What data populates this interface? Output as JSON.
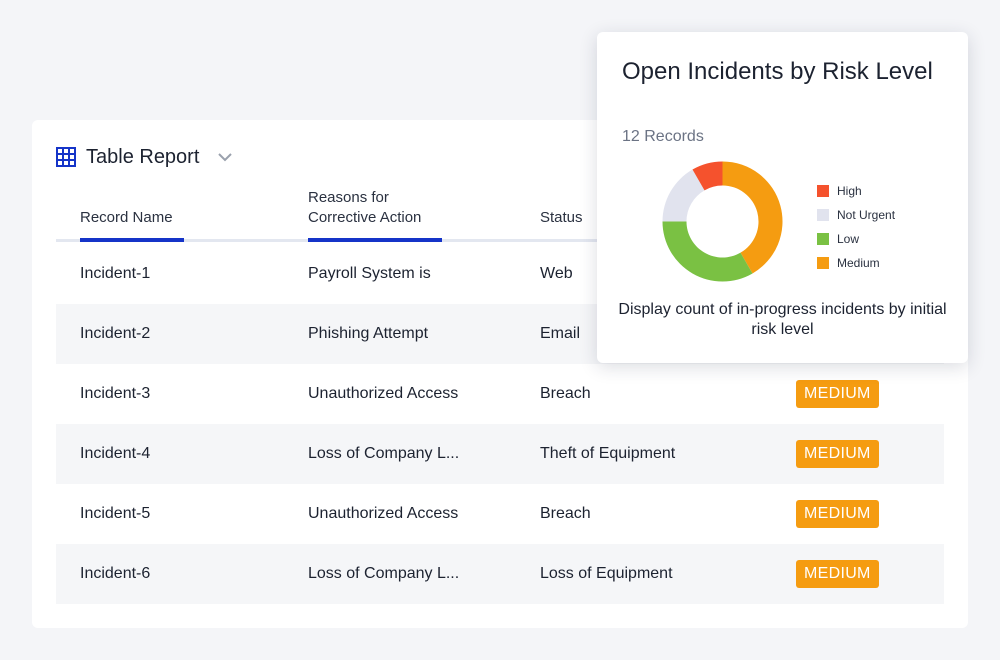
{
  "report": {
    "title": "Table Report",
    "icon": "grid-icon"
  },
  "columns": [
    "Record Name",
    "Reasons for Corrective Action",
    "Status"
  ],
  "rows": [
    {
      "name": "Incident-1",
      "reason": "Payroll System is",
      "status": "Web",
      "risk": ""
    },
    {
      "name": "Incident-2",
      "reason": "Phishing Attempt",
      "status": "Email",
      "risk": ""
    },
    {
      "name": "Incident-3",
      "reason": "Unauthorized Access",
      "status": "Breach",
      "risk": "MEDIUM"
    },
    {
      "name": "Incident-4",
      "reason": "Loss of Company L...",
      "status": "Theft of Equipment",
      "risk": "MEDIUM"
    },
    {
      "name": "Incident-5",
      "reason": "Unauthorized Access",
      "status": "Breach",
      "risk": "MEDIUM"
    },
    {
      "name": "Incident-6",
      "reason": "Loss of Company L...",
      "status": "Loss of Equipment",
      "risk": "MEDIUM"
    }
  ],
  "colors": {
    "accent": "#1534c8",
    "medium_badge": "#f59c11"
  },
  "popover": {
    "title": "Open Incidents by Risk Level",
    "count": "12 Records",
    "description": "Display count of in-progress incidents by initial risk level"
  },
  "chart_data": {
    "type": "pie",
    "title": "Open Incidents by Risk Level",
    "categories": [
      "High",
      "Not Urgent",
      "Low",
      "Medium"
    ],
    "values": [
      1,
      2,
      4,
      5
    ],
    "colors": [
      "#f5522d",
      "#e1e3ee",
      "#7ac143",
      "#f59c11"
    ],
    "legend_position": "right"
  }
}
